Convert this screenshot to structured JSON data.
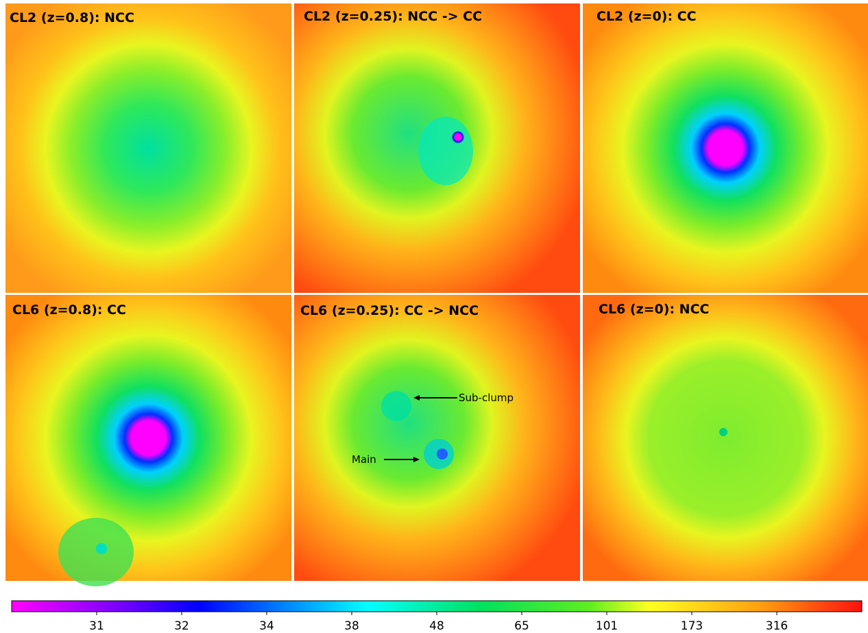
{
  "panels": [
    {
      "title": "CL2 (z=0.8): NCC"
    },
    {
      "title": "CL2 (z=0.25): NCC -> CC"
    },
    {
      "title": "CL2 (z=0): CC"
    },
    {
      "title": "CL6 (z=0.8): CC"
    },
    {
      "title": "CL6 (z=0.25): CC -> NCC",
      "annotations": [
        "Sub-clump",
        "Main"
      ]
    },
    {
      "title": "CL6 (z=0): NCC"
    }
  ],
  "colorbar": {
    "ticks": [
      31,
      32,
      34,
      38,
      48,
      65,
      101,
      173,
      316
    ]
  }
}
